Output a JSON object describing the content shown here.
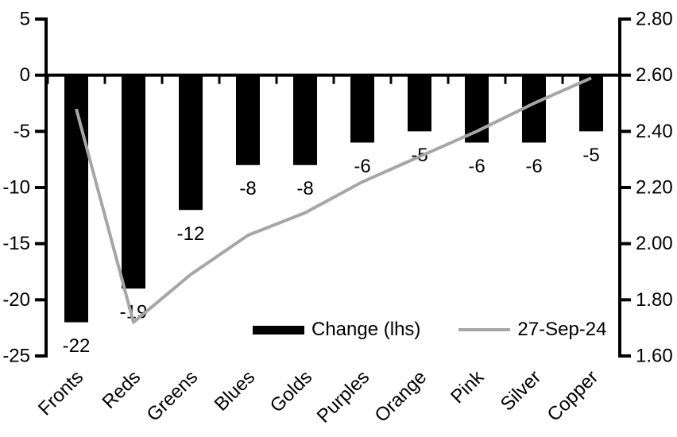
{
  "chart_data": {
    "type": "bar",
    "title": "",
    "xlabel": "",
    "ylabel": "",
    "categories": [
      "Fronts",
      "Reds",
      "Greens",
      "Blues",
      "Golds",
      "Purples",
      "Orange",
      "Pink",
      "Silver",
      "Copper"
    ],
    "series": [
      {
        "name": "Change (lhs)",
        "type": "bar",
        "axis": "left",
        "color": "#000000",
        "values": [
          -22,
          -19,
          -12,
          -8,
          -8,
          -6,
          -5,
          -6,
          -6,
          -5
        ],
        "labels": [
          "-22",
          "-19",
          "-12",
          "-8",
          "-8",
          "-6",
          "-5",
          "-6",
          "-6",
          "-5"
        ]
      },
      {
        "name": "27-Sep-24",
        "type": "line",
        "axis": "right",
        "color": "#a6a6a6",
        "values": [
          2.48,
          1.72,
          1.89,
          2.03,
          2.11,
          2.22,
          2.31,
          2.4,
          2.5,
          2.59
        ]
      }
    ],
    "axes": {
      "left": {
        "min": -25,
        "max": 5,
        "tick_values": [
          5,
          0,
          -5,
          -10,
          -15,
          -20,
          -25
        ],
        "tick_labels": [
          "5",
          "0",
          "-5",
          "-10",
          "-15",
          "-20",
          "-25"
        ]
      },
      "right": {
        "min": 1.6,
        "max": 2.8,
        "tick_values": [
          2.8,
          2.6,
          2.4,
          2.2,
          2.0,
          1.8,
          1.6
        ],
        "tick_labels": [
          "2.80",
          "2.60",
          "2.40",
          "2.20",
          "2.00",
          "1.80",
          "1.60"
        ]
      }
    },
    "grid": false,
    "x_tick_rotation_deg": 45,
    "legend": {
      "position": "bottom-inside",
      "entries": [
        "Change (lhs)",
        "27-Sep-24"
      ]
    }
  },
  "colors": {
    "background": "#ffffff",
    "axis": "#000000",
    "text": "#000000",
    "bar_series": "#000000",
    "line_series": "#a6a6a6"
  }
}
